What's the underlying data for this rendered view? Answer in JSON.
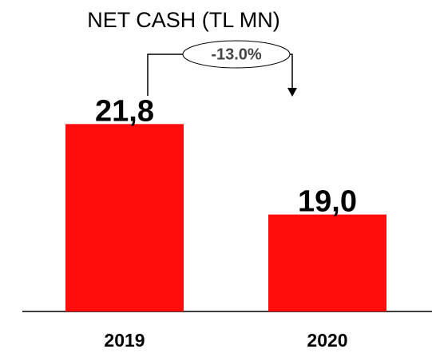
{
  "chart_data": {
    "type": "bar",
    "title": "NET CASH (TL MN)",
    "categories": [
      "2019",
      "2020"
    ],
    "values": [
      21.8,
      19.0
    ],
    "value_labels": [
      "21,8",
      "19,0"
    ],
    "color": "#ff0d0d",
    "ylim": [
      16,
      22.5
    ],
    "annotation": "-13.0%"
  }
}
